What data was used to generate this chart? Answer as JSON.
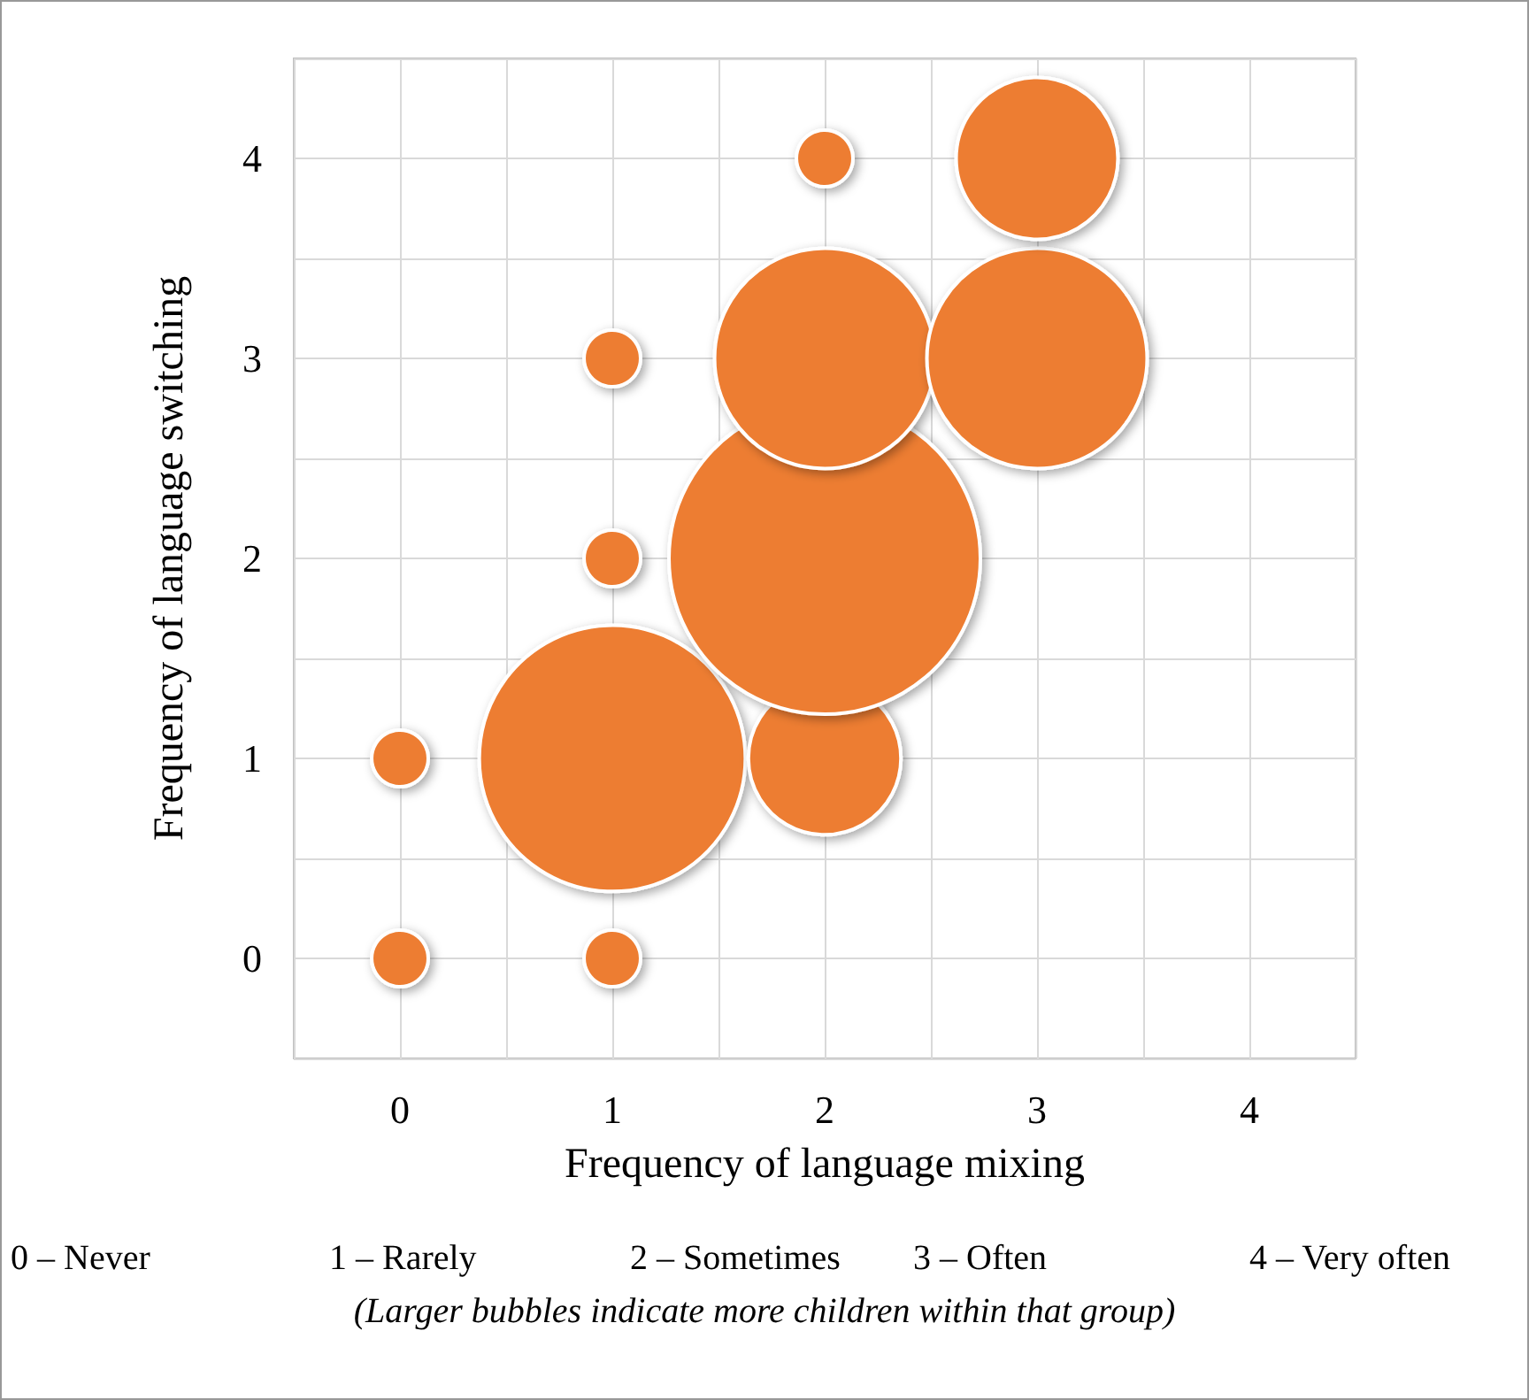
{
  "chart_data": {
    "type": "bubble",
    "xlabel": "Frequency of language mixing",
    "ylabel": "Frequency of language switching",
    "x": [
      0,
      1,
      0,
      1,
      2,
      1,
      2,
      1,
      2,
      3,
      2,
      3
    ],
    "values": [
      0,
      0,
      1,
      1,
      1,
      2,
      2,
      3,
      3,
      3,
      4,
      4
    ],
    "sizes": [
      0.033,
      0.033,
      0.033,
      0.73,
      0.24,
      0.033,
      1,
      0.033,
      0.5,
      0.5,
      0.033,
      0.27
    ],
    "color": "#ed7d31",
    "xlim": [
      -0.5,
      4.5
    ],
    "ylim": [
      -0.5,
      4.5
    ],
    "xticks": [
      {
        "value": -0.5,
        "label": null
      },
      0,
      {
        "value": 0.5,
        "label": null
      },
      1,
      {
        "value": 1.5,
        "label": null
      },
      2,
      {
        "value": 2.5,
        "label": null
      },
      3,
      {
        "value": 3.5,
        "label": null
      },
      4,
      {
        "value": 4.5,
        "label": null
      }
    ],
    "yticks": [
      {
        "value": -0.5,
        "label": null
      },
      0,
      {
        "value": 0.5,
        "label": null
      },
      1,
      {
        "value": 1.5,
        "label": null
      },
      2,
      {
        "value": 2.5,
        "label": null
      },
      3,
      {
        "value": 3.5,
        "label": null
      },
      4,
      {
        "value": 4.5,
        "label": null
      }
    ],
    "grid": true,
    "annotations": [
      "0 – Never",
      "1 – Rarely",
      "2 – Sometimes",
      "3 – Often",
      "4 – Very often",
      "(Larger bubbles indicate more children within that group)"
    ]
  }
}
